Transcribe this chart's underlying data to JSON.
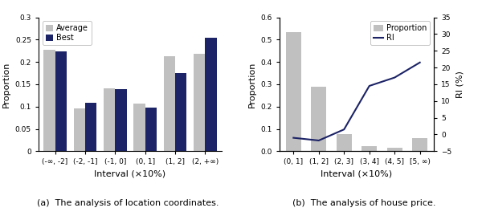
{
  "chart_a": {
    "categories": [
      "(-∞, -2]",
      "(-2, -1]",
      "(-1, 0]",
      "(0, 1]",
      "(1, 2]",
      "(2, +∞)"
    ],
    "average": [
      0.228,
      0.095,
      0.14,
      0.106,
      0.213,
      0.218
    ],
    "best": [
      0.223,
      0.108,
      0.139,
      0.098,
      0.175,
      0.255
    ],
    "ylabel": "Proportion",
    "xlabel": "Interval (×10%)",
    "ylim": [
      0,
      0.3
    ],
    "yticks": [
      0,
      0.05,
      0.1,
      0.15,
      0.2,
      0.25,
      0.3
    ],
    "legend_labels": [
      "Average",
      "Best"
    ],
    "bar_color_avg": "#c0c0c0",
    "bar_color_best": "#1c2366",
    "caption": "(a)  The analysis of location coordinates."
  },
  "chart_b": {
    "categories": [
      "(0, 1]",
      "(1, 2]",
      "(2, 3]",
      "(3, 4]",
      "(4, 5]",
      "[5, ∞)"
    ],
    "proportion": [
      0.535,
      0.288,
      0.075,
      0.022,
      0.015,
      0.06
    ],
    "ri": [
      -1.0,
      -1.8,
      1.5,
      14.5,
      17.0,
      21.5
    ],
    "ylabel_left": "Proportion",
    "ylabel_right": "RI (%)",
    "xlabel": "Interval (×10%)",
    "ylim_left": [
      0,
      0.6
    ],
    "ylim_right": [
      -5,
      35
    ],
    "yticks_left": [
      0,
      0.1,
      0.2,
      0.3,
      0.4,
      0.5,
      0.6
    ],
    "yticks_right": [
      -5,
      0,
      5,
      10,
      15,
      20,
      25,
      30,
      35
    ],
    "bar_color": "#c0c0c0",
    "line_color": "#1c2366",
    "legend_labels": [
      "Proportion",
      "RI"
    ],
    "caption": "(b)  The analysis of house price."
  }
}
